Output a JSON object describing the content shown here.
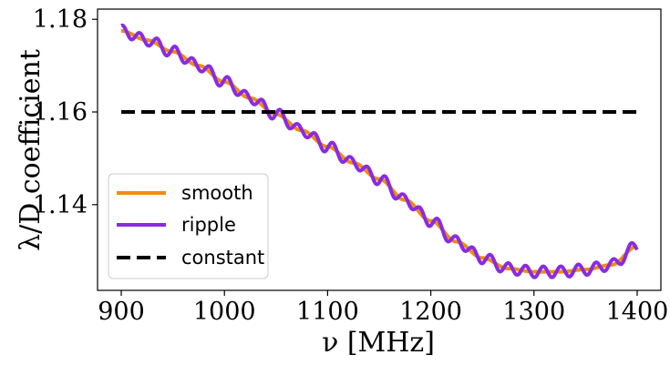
{
  "chart_data": {
    "type": "line",
    "xlabel": "ν [MHz]",
    "ylabel": "λ/D coefficient",
    "xlim": [
      877,
      1423
    ],
    "ylim": [
      1.1215,
      1.1822
    ],
    "xticks": [
      900,
      1000,
      1100,
      1200,
      1300,
      1400
    ],
    "yticks": [
      1.14,
      1.16,
      1.18
    ],
    "ytick_labels": [
      "1.14",
      "1.16",
      "1.18"
    ],
    "grid": false,
    "legend_position": "lower-left",
    "x": [
      900,
      925,
      950,
      975,
      1000,
      1025,
      1050,
      1075,
      1100,
      1125,
      1150,
      1175,
      1200,
      1225,
      1250,
      1275,
      1300,
      1325,
      1350,
      1375,
      1400
    ],
    "series": [
      {
        "name": "smooth",
        "color": "#F28C0F",
        "style": "solid",
        "values": [
          1.1775,
          1.1755,
          1.173,
          1.17,
          1.1665,
          1.163,
          1.1595,
          1.156,
          1.1525,
          1.149,
          1.1455,
          1.141,
          1.1365,
          1.132,
          1.1285,
          1.1262,
          1.1255,
          1.1255,
          1.126,
          1.127,
          1.131
        ]
      },
      {
        "name": "ripple",
        "color": "#8A2BE2",
        "style": "solid",
        "ripple_amplitude": 0.0012,
        "ripple_period_mhz": 17
      },
      {
        "name": "constant",
        "color": "#000000",
        "style": "dashed",
        "values": [
          1.16,
          1.16,
          1.16,
          1.16,
          1.16,
          1.16,
          1.16,
          1.16,
          1.16,
          1.16,
          1.16,
          1.16,
          1.16,
          1.16,
          1.16,
          1.16,
          1.16,
          1.16,
          1.16,
          1.16,
          1.16
        ]
      }
    ]
  }
}
